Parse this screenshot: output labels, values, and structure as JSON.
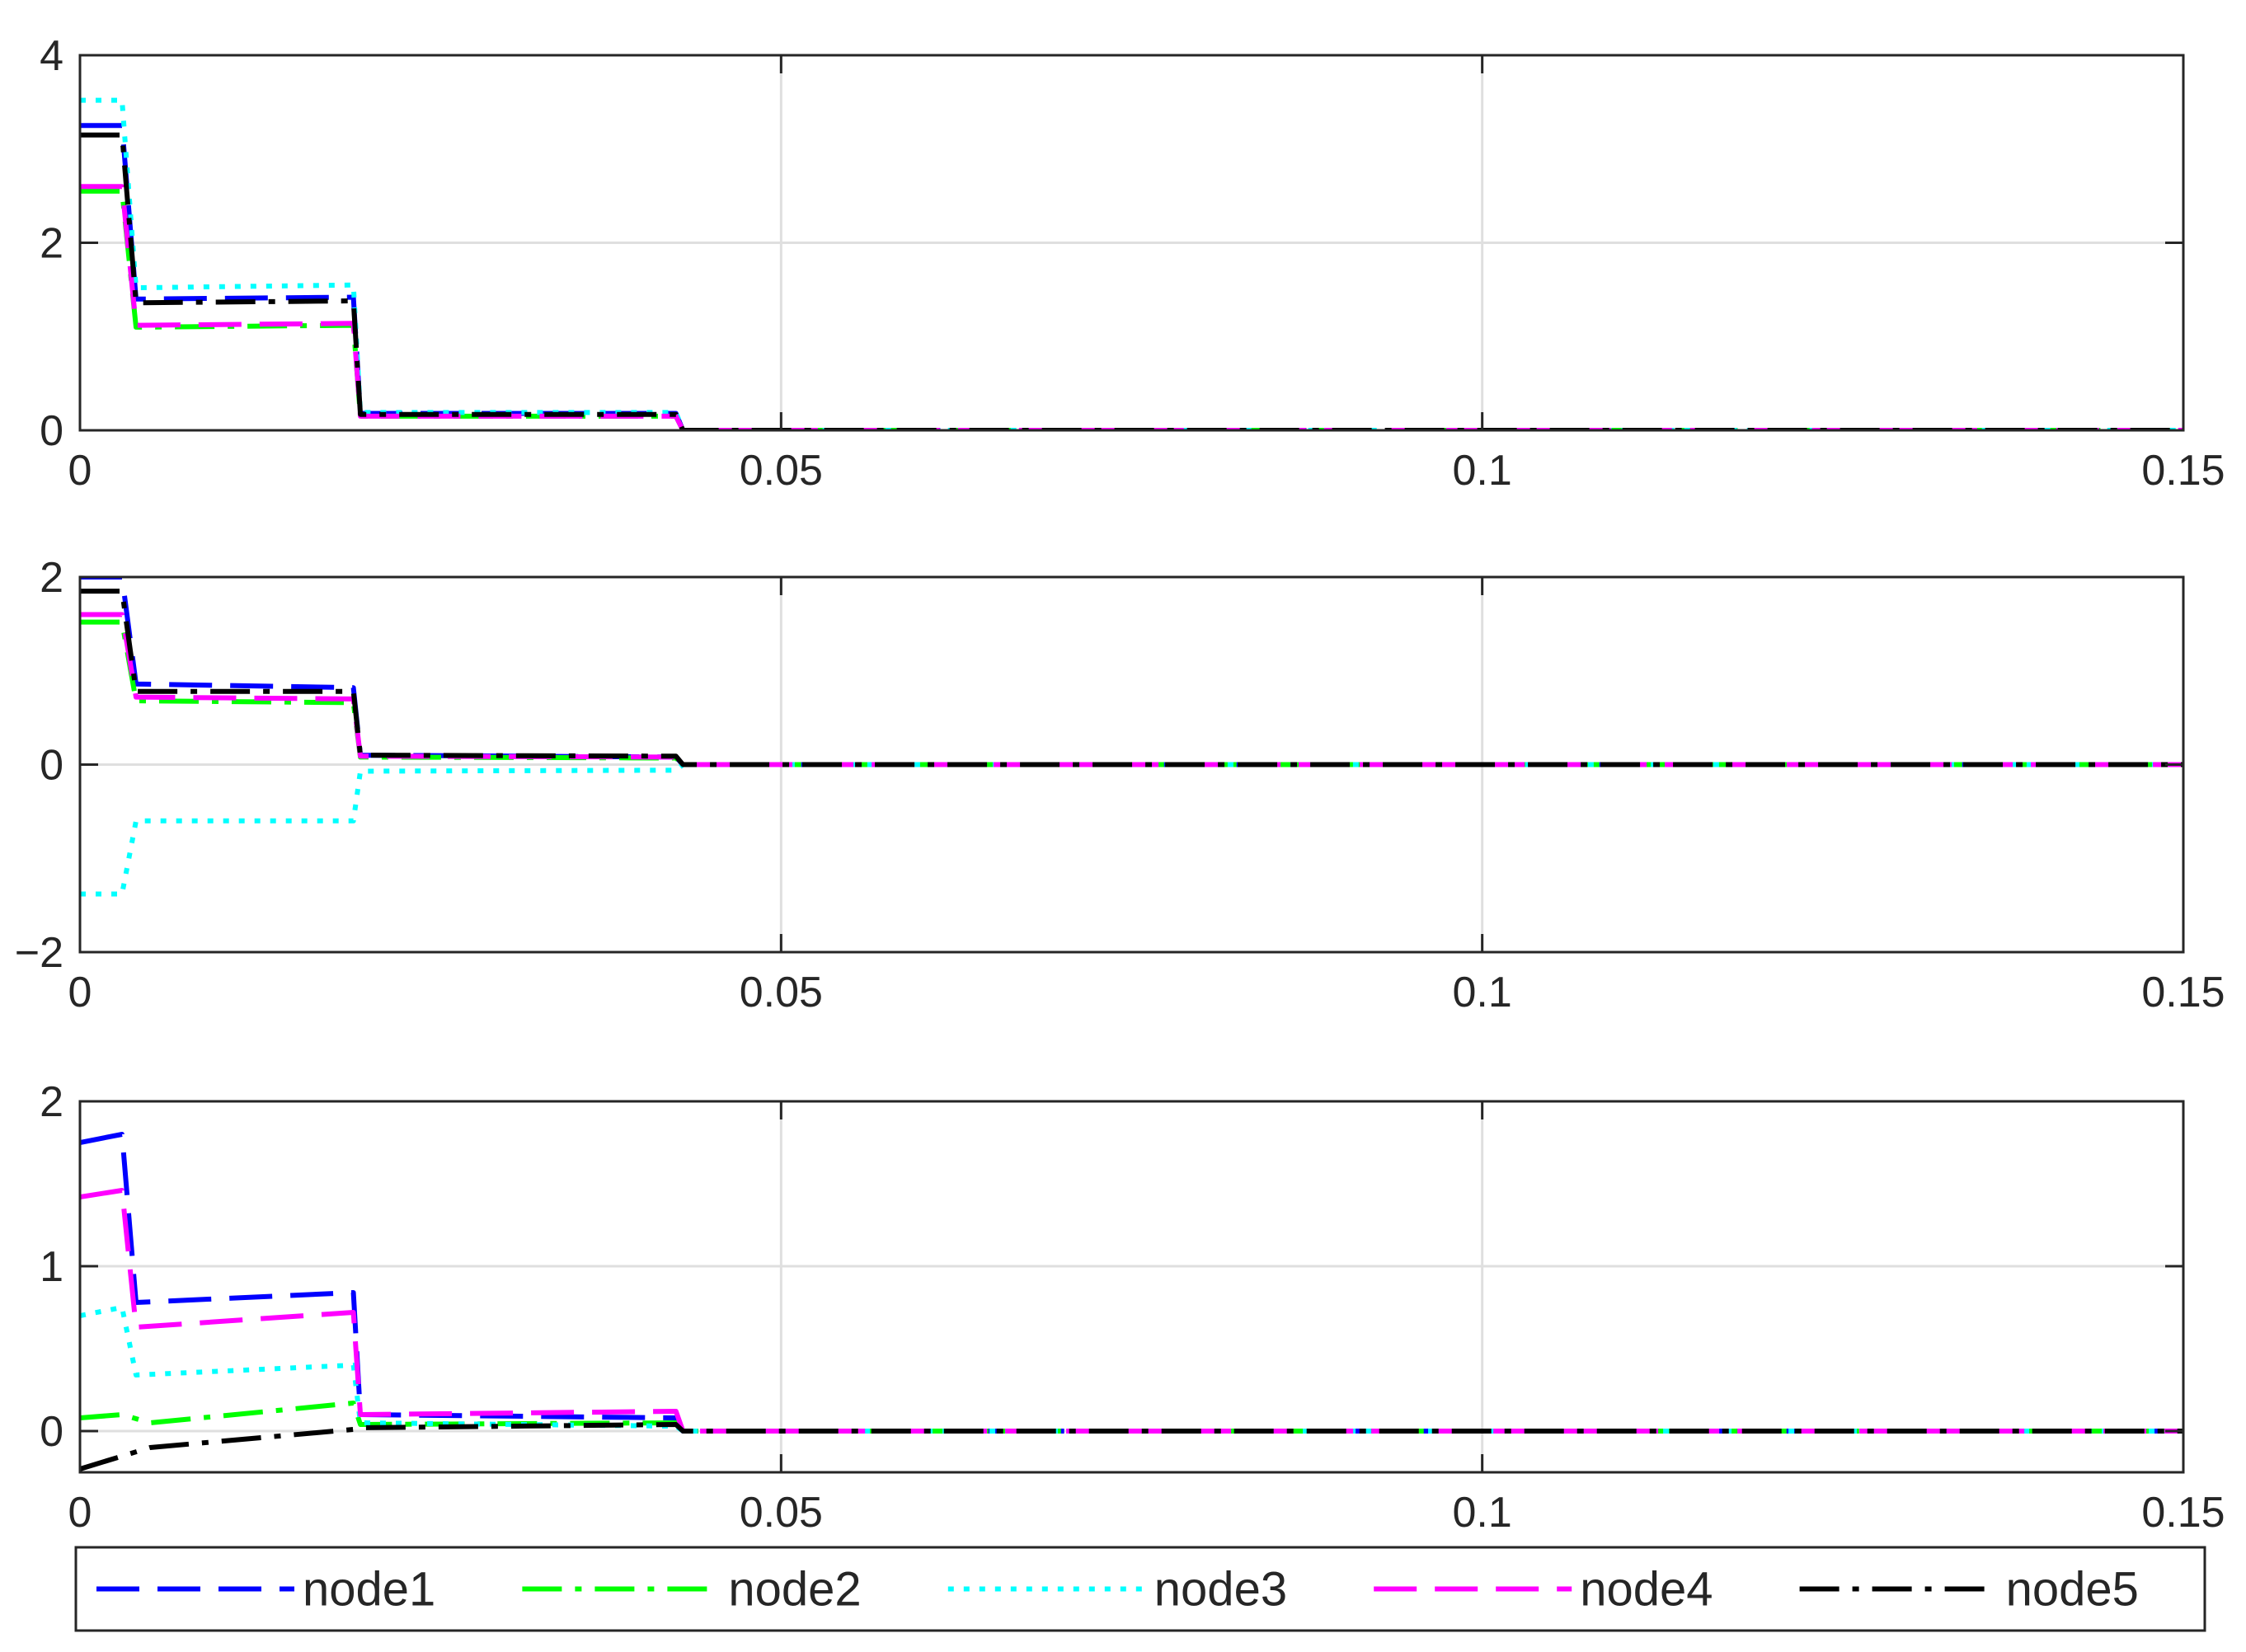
{
  "chart_data": [
    {
      "type": "line",
      "xlim": [
        0,
        0.15
      ],
      "ylim": [
        0,
        4
      ],
      "xticks": [
        0,
        0.05,
        0.1,
        0.15
      ],
      "xtick_labels": [
        "0",
        "0.05",
        "0.1",
        "0.15"
      ],
      "yticks": [
        0,
        2,
        4
      ],
      "ytick_labels": [
        "0",
        "2",
        "4"
      ],
      "grid": true,
      "series": [
        {
          "name": "node1",
          "x": [
            0,
            0.003,
            0.004,
            0.0195,
            0.02,
            0.0425,
            0.043,
            0.15
          ],
          "y": [
            3.25,
            3.25,
            1.4,
            1.42,
            0.18,
            0.18,
            0.0,
            0.0
          ]
        },
        {
          "name": "node2",
          "x": [
            0,
            0.003,
            0.004,
            0.0195,
            0.02,
            0.0425,
            0.043,
            0.15
          ],
          "y": [
            2.55,
            2.55,
            1.1,
            1.12,
            0.15,
            0.15,
            0.0,
            0.0
          ]
        },
        {
          "name": "node3",
          "x": [
            0,
            0.003,
            0.004,
            0.0195,
            0.02,
            0.0425,
            0.043,
            0.15
          ],
          "y": [
            3.52,
            3.52,
            1.52,
            1.55,
            0.19,
            0.19,
            0.0,
            0.0
          ]
        },
        {
          "name": "node4",
          "x": [
            0,
            0.003,
            0.004,
            0.0195,
            0.02,
            0.0425,
            0.043,
            0.15
          ],
          "y": [
            2.6,
            2.6,
            1.12,
            1.14,
            0.15,
            0.15,
            0.0,
            0.0
          ]
        },
        {
          "name": "node5",
          "x": [
            0,
            0.003,
            0.004,
            0.0195,
            0.02,
            0.0425,
            0.043,
            0.15
          ],
          "y": [
            3.15,
            3.15,
            1.36,
            1.38,
            0.17,
            0.17,
            0.0,
            0.0
          ]
        }
      ]
    },
    {
      "type": "line",
      "xlim": [
        0,
        0.15
      ],
      "ylim": [
        -2,
        2
      ],
      "xticks": [
        0,
        0.05,
        0.1,
        0.15
      ],
      "xtick_labels": [
        "0",
        "0.05",
        "0.1",
        "0.15"
      ],
      "yticks": [
        -2,
        0,
        2
      ],
      "ytick_labels": [
        "−2",
        "0",
        "2"
      ],
      "grid": true,
      "series": [
        {
          "name": "node1",
          "x": [
            0,
            0.003,
            0.004,
            0.0195,
            0.02,
            0.0425,
            0.043,
            0.15
          ],
          "y": [
            2.0,
            2.0,
            0.86,
            0.82,
            0.1,
            0.08,
            0.0,
            0.0
          ]
        },
        {
          "name": "node2",
          "x": [
            0,
            0.003,
            0.004,
            0.0195,
            0.02,
            0.0425,
            0.043,
            0.15
          ],
          "y": [
            1.52,
            1.52,
            0.68,
            0.66,
            0.08,
            0.07,
            0.0,
            0.0
          ]
        },
        {
          "name": "node3",
          "x": [
            0,
            0.003,
            0.004,
            0.0195,
            0.02,
            0.0425,
            0.043,
            0.15
          ],
          "y": [
            -1.38,
            -1.38,
            -0.6,
            -0.6,
            -0.07,
            -0.06,
            0.0,
            0.0
          ]
        },
        {
          "name": "node4",
          "x": [
            0,
            0.003,
            0.004,
            0.0195,
            0.02,
            0.0425,
            0.043,
            0.15
          ],
          "y": [
            1.6,
            1.6,
            0.72,
            0.7,
            0.09,
            0.08,
            0.0,
            0.0
          ]
        },
        {
          "name": "node5",
          "x": [
            0,
            0.003,
            0.004,
            0.0195,
            0.02,
            0.0425,
            0.043,
            0.15
          ],
          "y": [
            1.85,
            1.85,
            0.78,
            0.78,
            0.1,
            0.09,
            0.0,
            0.0
          ]
        }
      ]
    },
    {
      "type": "line",
      "xlim": [
        0,
        0.15
      ],
      "ylim": [
        -0.25,
        2
      ],
      "xticks": [
        0,
        0.05,
        0.1,
        0.15
      ],
      "xtick_labels": [
        "0",
        "0.05",
        "0.1",
        "0.15"
      ],
      "yticks": [
        0,
        1,
        2
      ],
      "ytick_labels": [
        "0",
        "1",
        "2"
      ],
      "grid": true,
      "series": [
        {
          "name": "node1",
          "x": [
            0,
            0.003,
            0.004,
            0.0195,
            0.02,
            0.0425,
            0.043,
            0.15
          ],
          "y": [
            1.75,
            1.8,
            0.78,
            0.84,
            0.1,
            0.08,
            0.0,
            0.0
          ]
        },
        {
          "name": "node2",
          "x": [
            0,
            0.003,
            0.005,
            0.0195,
            0.02,
            0.0425,
            0.043,
            0.15
          ],
          "y": [
            0.08,
            0.1,
            0.05,
            0.17,
            0.04,
            0.05,
            0.0,
            0.0
          ]
        },
        {
          "name": "node3",
          "x": [
            0,
            0.003,
            0.004,
            0.0195,
            0.02,
            0.0425,
            0.043,
            0.15
          ],
          "y": [
            0.7,
            0.75,
            0.34,
            0.4,
            0.05,
            0.03,
            0.0,
            0.0
          ]
        },
        {
          "name": "node4",
          "x": [
            0,
            0.003,
            0.004,
            0.0195,
            0.02,
            0.0425,
            0.043,
            0.15
          ],
          "y": [
            1.42,
            1.46,
            0.63,
            0.72,
            0.1,
            0.12,
            0.0,
            0.0
          ]
        },
        {
          "name": "node5",
          "x": [
            0,
            0.005,
            0.0195,
            0.02,
            0.0425,
            0.043,
            0.15
          ],
          "y": [
            -0.23,
            -0.1,
            0.01,
            0.02,
            0.04,
            0.0,
            0.0
          ]
        }
      ]
    }
  ],
  "legend": {
    "placement": "bottom",
    "entries": [
      {
        "label": "node1",
        "color": "#0000ff",
        "style": "dashed"
      },
      {
        "label": "node2",
        "color": "#00ff00",
        "style": "dashdot"
      },
      {
        "label": "node3",
        "color": "#00ffff",
        "style": "dotted"
      },
      {
        "label": "node4",
        "color": "#ff00ff",
        "style": "dashed"
      },
      {
        "label": "node5",
        "color": "#000000",
        "style": "dashdot"
      }
    ]
  }
}
